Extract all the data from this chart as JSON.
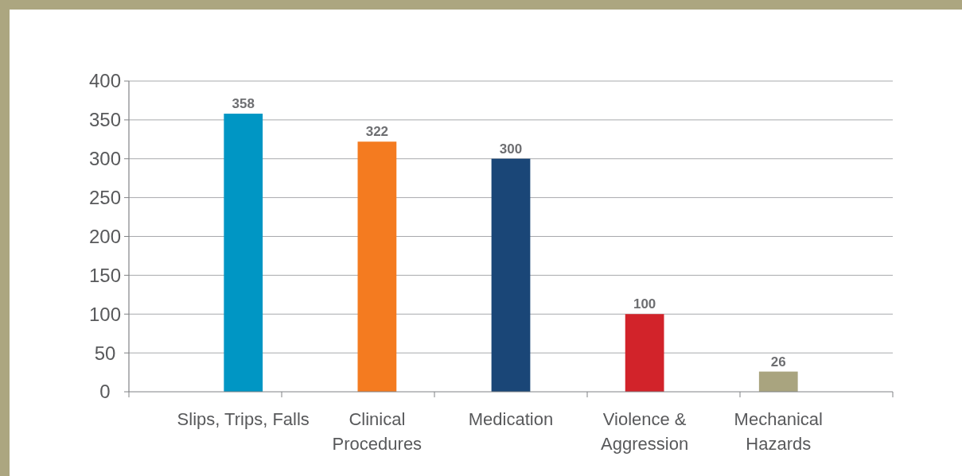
{
  "chart_data": {
    "type": "bar",
    "categories": [
      "Slips, Trips, Falls",
      "Clinical\nProcedures",
      "Medication",
      "Violence &\nAggression",
      "Mechanical\nHazards"
    ],
    "values": [
      358,
      322,
      300,
      100,
      26
    ],
    "colors": [
      "#0096c4",
      "#f47b20",
      "#1a4677",
      "#d2232a",
      "#a9a47f"
    ],
    "ylim": [
      0,
      400
    ],
    "yticks": [
      0,
      50,
      100,
      150,
      200,
      250,
      300,
      350,
      400
    ],
    "grid": "y",
    "data_labels": true
  }
}
